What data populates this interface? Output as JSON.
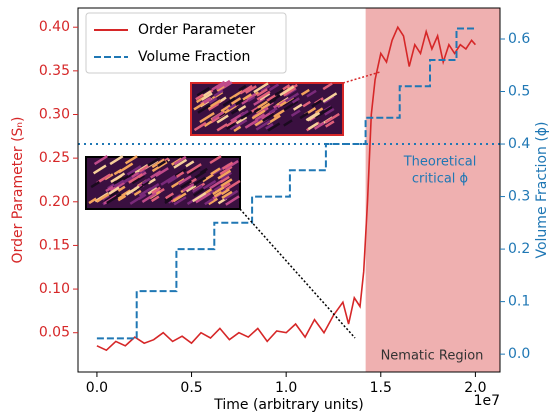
{
  "chart_data": {
    "type": "line",
    "x_label": "Time (arbitrary units)",
    "x_offset_label": "1e7",
    "y_label": "Order Parameter (Sₙ)",
    "y2_label": "Volume Fraction (ϕ)",
    "xlim": [
      -0.1,
      2.13
    ],
    "ylim": [
      0.005,
      0.422
    ],
    "y2lim": [
      -0.034,
      0.659
    ],
    "xticks": [
      {
        "value": 0,
        "label": "0.0"
      },
      {
        "value": 0.5,
        "label": "0.5"
      },
      {
        "value": 1.0,
        "label": "1.0"
      },
      {
        "value": 1.5,
        "label": "1.5"
      },
      {
        "value": 2.0,
        "label": "2.0"
      }
    ],
    "yticks": [
      {
        "value": 0.05,
        "label": "0.05"
      },
      {
        "value": 0.1,
        "label": "0.10"
      },
      {
        "value": 0.15,
        "label": "0.15"
      },
      {
        "value": 0.2,
        "label": "0.20"
      },
      {
        "value": 0.25,
        "label": "0.25"
      },
      {
        "value": 0.3,
        "label": "0.30"
      },
      {
        "value": 0.35,
        "label": "0.35"
      },
      {
        "value": 0.4,
        "label": "0.40"
      }
    ],
    "y2ticks": [
      {
        "value": 0,
        "label": "0.0"
      },
      {
        "value": 0.1,
        "label": "0.1"
      },
      {
        "value": 0.2,
        "label": "0.2"
      },
      {
        "value": 0.3,
        "label": "0.3"
      },
      {
        "value": 0.4,
        "label": "0.4"
      },
      {
        "value": 0.5,
        "label": "0.5"
      },
      {
        "value": 0.6,
        "label": "0.6"
      }
    ],
    "legend": "upper left",
    "series": [
      {
        "name": "Order Parameter",
        "color": "#d62728",
        "style": "solid",
        "x": [
          0,
          0.05,
          0.1,
          0.15,
          0.2,
          0.25,
          0.3,
          0.35,
          0.4,
          0.45,
          0.5,
          0.55,
          0.6,
          0.65,
          0.7,
          0.75,
          0.8,
          0.85,
          0.9,
          0.95,
          1.0,
          1.05,
          1.1,
          1.15,
          1.2,
          1.25,
          1.3,
          1.33,
          1.36,
          1.39,
          1.41,
          1.43,
          1.45,
          1.47,
          1.5,
          1.53,
          1.56,
          1.59,
          1.62,
          1.65,
          1.68,
          1.71,
          1.74,
          1.77,
          1.8,
          1.83,
          1.86,
          1.89,
          1.92,
          1.95,
          1.98,
          2.0
        ],
        "values": [
          0.035,
          0.03,
          0.04,
          0.035,
          0.045,
          0.038,
          0.042,
          0.05,
          0.04,
          0.046,
          0.038,
          0.05,
          0.044,
          0.055,
          0.042,
          0.05,
          0.045,
          0.055,
          0.04,
          0.052,
          0.05,
          0.06,
          0.045,
          0.065,
          0.05,
          0.07,
          0.085,
          0.06,
          0.09,
          0.08,
          0.12,
          0.2,
          0.3,
          0.34,
          0.37,
          0.36,
          0.385,
          0.4,
          0.39,
          0.355,
          0.38,
          0.37,
          0.395,
          0.375,
          0.39,
          0.36,
          0.38,
          0.37,
          0.38,
          0.375,
          0.385,
          0.38
        ]
      },
      {
        "name": "Volume Fraction",
        "color": "#1f77b4",
        "style": "dashed",
        "axis": "y2",
        "x": [
          0,
          0.21,
          0.21,
          0.42,
          0.42,
          0.62,
          0.62,
          0.82,
          0.82,
          1.02,
          1.02,
          1.21,
          1.21,
          1.42,
          1.42,
          1.6,
          1.6,
          1.76,
          1.76,
          1.9,
          1.9,
          2.0
        ],
        "values": [
          0.03,
          0.03,
          0.12,
          0.12,
          0.2,
          0.2,
          0.25,
          0.25,
          0.3,
          0.3,
          0.35,
          0.35,
          0.4,
          0.4,
          0.45,
          0.45,
          0.51,
          0.51,
          0.56,
          0.56,
          0.62,
          0.62
        ]
      }
    ],
    "region": {
      "label": "Nematic Region",
      "start": 1.42,
      "color": "#efb0b0"
    },
    "critical_line": {
      "value": 0.4,
      "label": [
        "Theoretical",
        "critical ϕ"
      ]
    }
  }
}
